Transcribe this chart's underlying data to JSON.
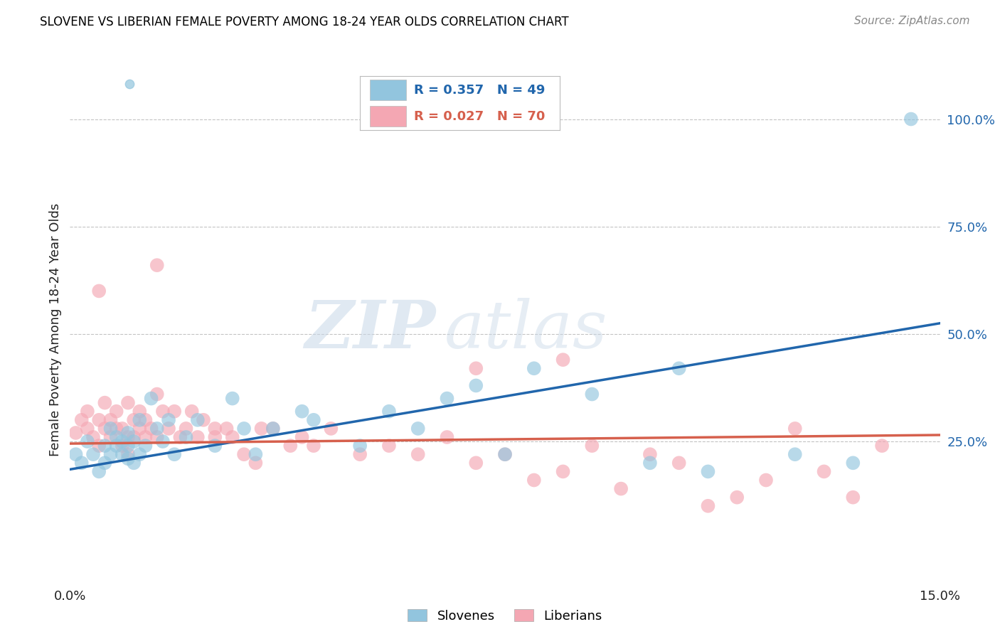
{
  "title": "SLOVENE VS LIBERIAN FEMALE POVERTY AMONG 18-24 YEAR OLDS CORRELATION CHART",
  "source": "Source: ZipAtlas.com",
  "ylabel": "Female Poverty Among 18-24 Year Olds",
  "xlim": [
    0.0,
    0.15
  ],
  "ylim": [
    -0.08,
    1.1
  ],
  "slovene_R": 0.357,
  "slovene_N": 49,
  "liberian_R": 0.027,
  "liberian_N": 70,
  "slovene_color": "#92c5de",
  "liberian_color": "#f4a7b3",
  "slovene_line_color": "#2166ac",
  "liberian_line_color": "#d6604d",
  "background_color": "#ffffff",
  "watermark_zip": "ZIP",
  "watermark_atlas": "atlas",
  "slovene_line_x0": 0.0,
  "slovene_line_y0": 0.185,
  "slovene_line_x1": 0.15,
  "slovene_line_y1": 0.525,
  "liberian_line_x0": 0.0,
  "liberian_line_y0": 0.245,
  "liberian_line_x1": 0.15,
  "liberian_line_y1": 0.265,
  "slovene_x": [
    0.001,
    0.002,
    0.003,
    0.004,
    0.005,
    0.006,
    0.006,
    0.007,
    0.007,
    0.008,
    0.008,
    0.009,
    0.009,
    0.01,
    0.01,
    0.01,
    0.011,
    0.011,
    0.012,
    0.012,
    0.013,
    0.014,
    0.015,
    0.016,
    0.017,
    0.018,
    0.02,
    0.022,
    0.025,
    0.028,
    0.03,
    0.032,
    0.035,
    0.04,
    0.042,
    0.05,
    0.055,
    0.06,
    0.065,
    0.07,
    0.075,
    0.08,
    0.09,
    0.1,
    0.105,
    0.11,
    0.125,
    0.135,
    0.145
  ],
  "slovene_y": [
    0.22,
    0.2,
    0.25,
    0.22,
    0.18,
    0.2,
    0.24,
    0.22,
    0.28,
    0.24,
    0.26,
    0.22,
    0.25,
    0.21,
    0.24,
    0.27,
    0.2,
    0.25,
    0.22,
    0.3,
    0.24,
    0.35,
    0.28,
    0.25,
    0.3,
    0.22,
    0.26,
    0.3,
    0.24,
    0.35,
    0.28,
    0.22,
    0.28,
    0.32,
    0.3,
    0.24,
    0.32,
    0.28,
    0.35,
    0.38,
    0.22,
    0.42,
    0.36,
    0.2,
    0.42,
    0.18,
    0.22,
    0.2,
    1.0
  ],
  "liberian_x": [
    0.001,
    0.002,
    0.003,
    0.003,
    0.004,
    0.005,
    0.005,
    0.006,
    0.006,
    0.007,
    0.007,
    0.008,
    0.008,
    0.009,
    0.009,
    0.01,
    0.01,
    0.01,
    0.011,
    0.011,
    0.012,
    0.012,
    0.013,
    0.013,
    0.014,
    0.015,
    0.015,
    0.016,
    0.017,
    0.018,
    0.019,
    0.02,
    0.021,
    0.022,
    0.023,
    0.025,
    0.027,
    0.028,
    0.03,
    0.032,
    0.033,
    0.035,
    0.038,
    0.04,
    0.042,
    0.045,
    0.05,
    0.055,
    0.06,
    0.065,
    0.07,
    0.075,
    0.08,
    0.085,
    0.09,
    0.095,
    0.1,
    0.105,
    0.11,
    0.115,
    0.12,
    0.125,
    0.13,
    0.135,
    0.14,
    0.07,
    0.085,
    0.005,
    0.015,
    0.025
  ],
  "liberian_y": [
    0.27,
    0.3,
    0.28,
    0.32,
    0.26,
    0.24,
    0.3,
    0.28,
    0.34,
    0.26,
    0.3,
    0.28,
    0.32,
    0.24,
    0.28,
    0.22,
    0.26,
    0.34,
    0.26,
    0.3,
    0.28,
    0.32,
    0.26,
    0.3,
    0.28,
    0.36,
    0.26,
    0.32,
    0.28,
    0.32,
    0.26,
    0.28,
    0.32,
    0.26,
    0.3,
    0.28,
    0.28,
    0.26,
    0.22,
    0.2,
    0.28,
    0.28,
    0.24,
    0.26,
    0.24,
    0.28,
    0.22,
    0.24,
    0.22,
    0.26,
    0.2,
    0.22,
    0.16,
    0.18,
    0.24,
    0.14,
    0.22,
    0.2,
    0.1,
    0.12,
    0.16,
    0.28,
    0.18,
    0.12,
    0.24,
    0.42,
    0.44,
    0.6,
    0.66,
    0.26
  ]
}
